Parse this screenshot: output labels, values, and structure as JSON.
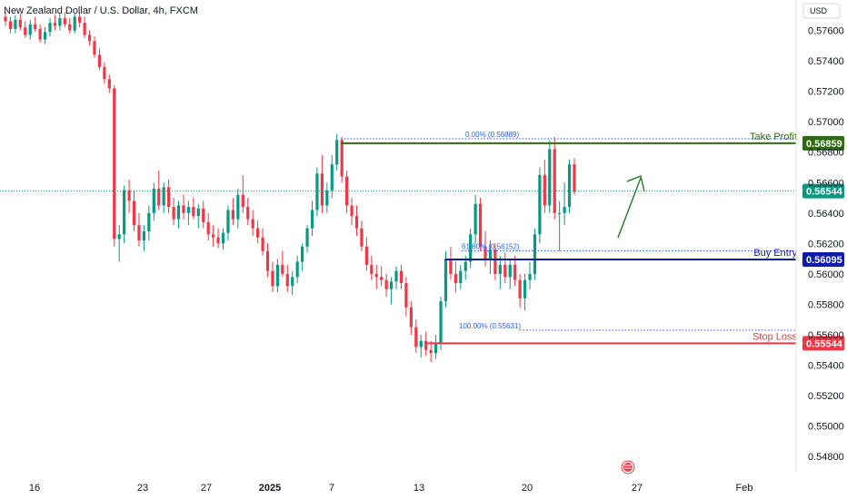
{
  "chart_data": {
    "type": "candlestick",
    "title": "New Zealand Dollar / U.S. Dollar, 4h, FXCM",
    "currency": "USD",
    "ylim": [
      0.547,
      0.578
    ],
    "y_ticks": [
      "0.57600",
      "0.57400",
      "0.57200",
      "0.57000",
      "0.56800",
      "0.56600",
      "0.56400",
      "0.56200",
      "0.56000",
      "0.55800",
      "0.55600",
      "0.55400",
      "0.55200",
      "0.55000",
      "0.54800"
    ],
    "x_ticks": [
      {
        "label": "16",
        "bold": false
      },
      {
        "label": "23",
        "bold": false
      },
      {
        "label": "27",
        "bold": false
      },
      {
        "label": "2025",
        "bold": true
      },
      {
        "label": "7",
        "bold": false
      },
      {
        "label": "13",
        "bold": false
      },
      {
        "label": "20",
        "bold": false
      },
      {
        "label": "27",
        "bold": false
      },
      {
        "label": "Feb",
        "bold": false
      }
    ],
    "levels": [
      {
        "name": "Take Profit",
        "price": "0.56859",
        "color": "#2e6b0f"
      },
      {
        "name": "Buy Entry",
        "price": "0.56095",
        "color": "#0c1ea8"
      },
      {
        "name": "Stop Loss",
        "price": "0.55544",
        "color": "#f23645"
      }
    ],
    "current_price": {
      "price": "0.56544",
      "color": "#089981"
    },
    "fib": [
      {
        "label": "0.00% (0.56889)",
        "price": 0.56889
      },
      {
        "label": "61.80% (0.56152)",
        "price": 0.56152
      },
      {
        "label": "100.00% (0.55631)",
        "price": 0.55631
      }
    ],
    "candles_ohlc_per_index": "[open, high, low, close]",
    "candles": [
      [
        0.5769,
        0.5772,
        0.5763,
        0.5766
      ],
      [
        0.5766,
        0.5769,
        0.5758,
        0.5761
      ],
      [
        0.5761,
        0.577,
        0.5758,
        0.5767
      ],
      [
        0.5767,
        0.5771,
        0.576,
        0.5762
      ],
      [
        0.5762,
        0.5766,
        0.5755,
        0.5757
      ],
      [
        0.5757,
        0.5767,
        0.5754,
        0.5764
      ],
      [
        0.5764,
        0.5769,
        0.5759,
        0.5761
      ],
      [
        0.5761,
        0.5764,
        0.5752,
        0.5754
      ],
      [
        0.5754,
        0.5762,
        0.5751,
        0.5759
      ],
      [
        0.5759,
        0.5768,
        0.5756,
        0.5765
      ],
      [
        0.5765,
        0.577,
        0.576,
        0.5763
      ],
      [
        0.5763,
        0.5771,
        0.576,
        0.5768
      ],
      [
        0.5768,
        0.5772,
        0.5762,
        0.5764
      ],
      [
        0.5764,
        0.5768,
        0.5758,
        0.576
      ],
      [
        0.576,
        0.5771,
        0.5758,
        0.5769
      ],
      [
        0.5769,
        0.5772,
        0.5762,
        0.5765
      ],
      [
        0.5765,
        0.5769,
        0.5755,
        0.5757
      ],
      [
        0.5757,
        0.576,
        0.575,
        0.5753
      ],
      [
        0.5753,
        0.5756,
        0.5742,
        0.5744
      ],
      [
        0.5744,
        0.5748,
        0.5734,
        0.5736
      ],
      [
        0.5736,
        0.5739,
        0.5725,
        0.5728
      ],
      [
        0.5728,
        0.5731,
        0.5719,
        0.5722
      ],
      [
        0.5722,
        0.5724,
        0.5618,
        0.5623
      ],
      [
        0.5623,
        0.5632,
        0.5608,
        0.5626
      ],
      [
        0.5626,
        0.5658,
        0.562,
        0.5655
      ],
      [
        0.5655,
        0.5662,
        0.564,
        0.5648
      ],
      [
        0.5648,
        0.5655,
        0.5628,
        0.5632
      ],
      [
        0.5632,
        0.564,
        0.5618,
        0.5622
      ],
      [
        0.5622,
        0.5632,
        0.5615,
        0.5628
      ],
      [
        0.5628,
        0.5645,
        0.5622,
        0.564
      ],
      [
        0.564,
        0.566,
        0.5635,
        0.5656
      ],
      [
        0.5656,
        0.5668,
        0.5642,
        0.5645
      ],
      [
        0.5645,
        0.566,
        0.564,
        0.5657
      ],
      [
        0.5657,
        0.5662,
        0.564,
        0.5644
      ],
      [
        0.5644,
        0.565,
        0.5632,
        0.5636
      ],
      [
        0.5636,
        0.5648,
        0.563,
        0.5645
      ],
      [
        0.5645,
        0.5652,
        0.5636,
        0.564
      ],
      [
        0.564,
        0.5648,
        0.5632,
        0.5644
      ],
      [
        0.5644,
        0.565,
        0.5636,
        0.5638
      ],
      [
        0.5638,
        0.5646,
        0.563,
        0.5643
      ],
      [
        0.5643,
        0.5648,
        0.563,
        0.5634
      ],
      [
        0.5634,
        0.564,
        0.5622,
        0.5626
      ],
      [
        0.5626,
        0.5632,
        0.5618,
        0.5624
      ],
      [
        0.5624,
        0.563,
        0.5617,
        0.562
      ],
      [
        0.562,
        0.563,
        0.5616,
        0.5627
      ],
      [
        0.5627,
        0.5645,
        0.5622,
        0.5642
      ],
      [
        0.5642,
        0.565,
        0.5632,
        0.5636
      ],
      [
        0.5636,
        0.5656,
        0.563,
        0.5652
      ],
      [
        0.5652,
        0.5665,
        0.564,
        0.5644
      ],
      [
        0.5644,
        0.565,
        0.5632,
        0.5636
      ],
      [
        0.5636,
        0.5642,
        0.5625,
        0.563
      ],
      [
        0.563,
        0.5635,
        0.562,
        0.5624
      ],
      [
        0.5624,
        0.563,
        0.5612,
        0.5615
      ],
      [
        0.5615,
        0.562,
        0.5598,
        0.5602
      ],
      [
        0.5602,
        0.5608,
        0.5588,
        0.5592
      ],
      [
        0.5592,
        0.561,
        0.5588,
        0.5606
      ],
      [
        0.5606,
        0.5615,
        0.5598,
        0.56
      ],
      [
        0.56,
        0.5606,
        0.5588,
        0.5592
      ],
      [
        0.5592,
        0.5602,
        0.5586,
        0.5598
      ],
      [
        0.5598,
        0.5612,
        0.5594,
        0.5608
      ],
      [
        0.5608,
        0.562,
        0.5602,
        0.5618
      ],
      [
        0.5618,
        0.5632,
        0.5614,
        0.563
      ],
      [
        0.563,
        0.5648,
        0.5625,
        0.5642
      ],
      [
        0.5642,
        0.567,
        0.5638,
        0.5666
      ],
      [
        0.5666,
        0.5678,
        0.564,
        0.5645
      ],
      [
        0.5645,
        0.566,
        0.564,
        0.5655
      ],
      [
        0.5655,
        0.5678,
        0.565,
        0.5672
      ],
      [
        0.5672,
        0.5692,
        0.5668,
        0.5688
      ],
      [
        0.5688,
        0.569,
        0.566,
        0.5664
      ],
      [
        0.5664,
        0.5668,
        0.564,
        0.5645
      ],
      [
        0.5645,
        0.565,
        0.5632,
        0.5638
      ],
      [
        0.5638,
        0.5645,
        0.5625,
        0.563
      ],
      [
        0.563,
        0.5635,
        0.5615,
        0.5618
      ],
      [
        0.5618,
        0.5624,
        0.5602,
        0.5606
      ],
      [
        0.5606,
        0.5612,
        0.5596,
        0.56
      ],
      [
        0.56,
        0.5606,
        0.559,
        0.5598
      ],
      [
        0.5598,
        0.5605,
        0.5592,
        0.5596
      ],
      [
        0.5596,
        0.56,
        0.5585,
        0.559
      ],
      [
        0.559,
        0.5598,
        0.558,
        0.5595
      ],
      [
        0.5595,
        0.5605,
        0.559,
        0.5602
      ],
      [
        0.5602,
        0.5606,
        0.559,
        0.5594
      ],
      [
        0.5594,
        0.5598,
        0.5572,
        0.5578
      ],
      [
        0.5578,
        0.5582,
        0.556,
        0.5565
      ],
      [
        0.5565,
        0.557,
        0.5548,
        0.5552
      ],
      [
        0.5552,
        0.556,
        0.5545,
        0.5556
      ],
      [
        0.5556,
        0.5562,
        0.5546,
        0.555
      ],
      [
        0.555,
        0.5556,
        0.5542,
        0.5548
      ],
      [
        0.5548,
        0.556,
        0.5544,
        0.5555
      ],
      [
        0.5555,
        0.5585,
        0.555,
        0.5582
      ],
      [
        0.5582,
        0.5615,
        0.5578,
        0.561
      ],
      [
        0.561,
        0.5618,
        0.5596,
        0.56
      ],
      [
        0.56,
        0.5608,
        0.5588,
        0.5594
      ],
      [
        0.5594,
        0.5606,
        0.559,
        0.5602
      ],
      [
        0.5602,
        0.5612,
        0.5596,
        0.5608
      ],
      [
        0.5608,
        0.563,
        0.5604,
        0.5626
      ],
      [
        0.5626,
        0.5652,
        0.562,
        0.5646
      ],
      [
        0.5646,
        0.565,
        0.5615,
        0.5618
      ],
      [
        0.5618,
        0.5628,
        0.5605,
        0.561
      ],
      [
        0.561,
        0.5622,
        0.56,
        0.5616
      ],
      [
        0.5616,
        0.562,
        0.5596,
        0.56
      ],
      [
        0.56,
        0.5612,
        0.559,
        0.5606
      ],
      [
        0.5606,
        0.5614,
        0.5594,
        0.5598
      ],
      [
        0.5598,
        0.561,
        0.559,
        0.5606
      ],
      [
        0.5606,
        0.5612,
        0.5592,
        0.5596
      ],
      [
        0.5596,
        0.56,
        0.5578,
        0.5584
      ],
      [
        0.5584,
        0.56,
        0.5576,
        0.5596
      ],
      [
        0.5596,
        0.5608,
        0.559,
        0.56
      ],
      [
        0.56,
        0.563,
        0.5596,
        0.5626
      ],
      [
        0.5626,
        0.567,
        0.562,
        0.5665
      ],
      [
        0.5665,
        0.5675,
        0.564,
        0.5645
      ],
      [
        0.5645,
        0.5688,
        0.564,
        0.5682
      ],
      [
        0.5682,
        0.569,
        0.5636,
        0.564
      ],
      [
        0.564,
        0.5648,
        0.5615,
        0.564
      ],
      [
        0.564,
        0.566,
        0.5632,
        0.5644
      ],
      [
        0.5644,
        0.5675,
        0.564,
        0.5672
      ],
      [
        0.5672,
        0.5676,
        0.5652,
        0.5654
      ]
    ]
  }
}
